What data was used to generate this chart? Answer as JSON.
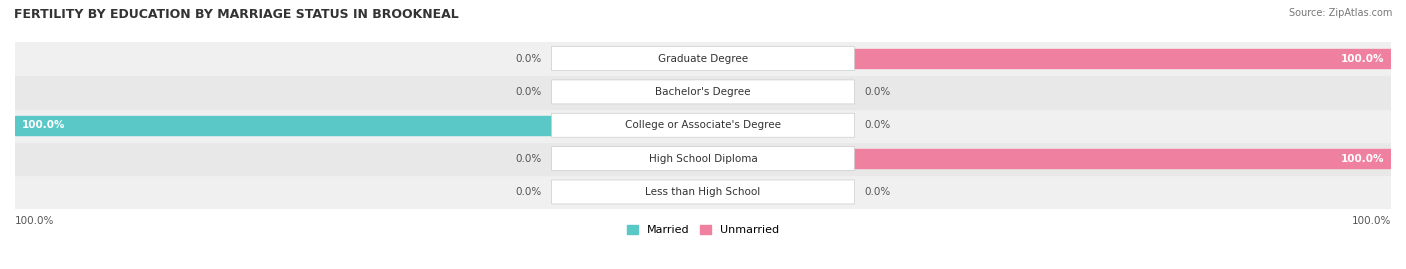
{
  "title": "FERTILITY BY EDUCATION BY MARRIAGE STATUS IN BROOKNEAL",
  "source": "Source: ZipAtlas.com",
  "categories": [
    "Less than High School",
    "High School Diploma",
    "College or Associate's Degree",
    "Bachelor's Degree",
    "Graduate Degree"
  ],
  "married": [
    0.0,
    0.0,
    100.0,
    0.0,
    0.0
  ],
  "unmarried": [
    0.0,
    100.0,
    0.0,
    0.0,
    100.0
  ],
  "married_color": "#5BC8C8",
  "unmarried_color": "#F080A0",
  "row_bg_colors": [
    "#F0F0F0",
    "#E8E8E8",
    "#F0F0F0",
    "#E8E8E8",
    "#F0F0F0"
  ],
  "max_val": 100.0,
  "figsize": [
    14.06,
    2.69
  ],
  "dpi": 100
}
